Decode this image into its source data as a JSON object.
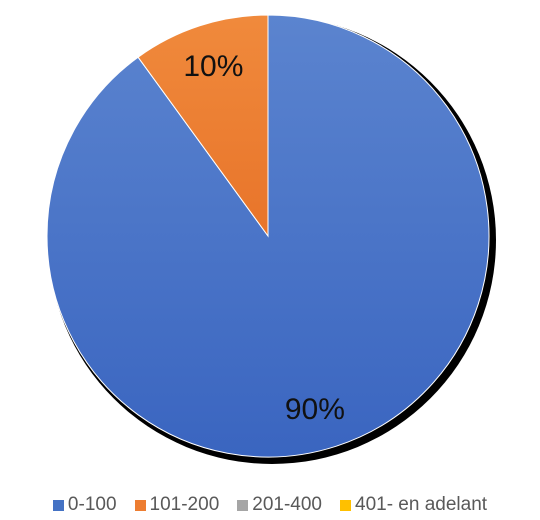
{
  "chart_data": {
    "type": "pie",
    "title": "",
    "categories": [
      "0-100",
      "101-200",
      "201-400",
      "401- en adelant"
    ],
    "values": [
      90,
      10,
      0,
      0
    ],
    "data_labels": [
      "90%",
      "10%",
      "",
      ""
    ],
    "colors": [
      "#4472c4",
      "#ed7d31",
      "#a5a5a5",
      "#ffc000"
    ],
    "start_angle_deg": 0,
    "direction": "clockwise",
    "legend_position": "bottom"
  }
}
